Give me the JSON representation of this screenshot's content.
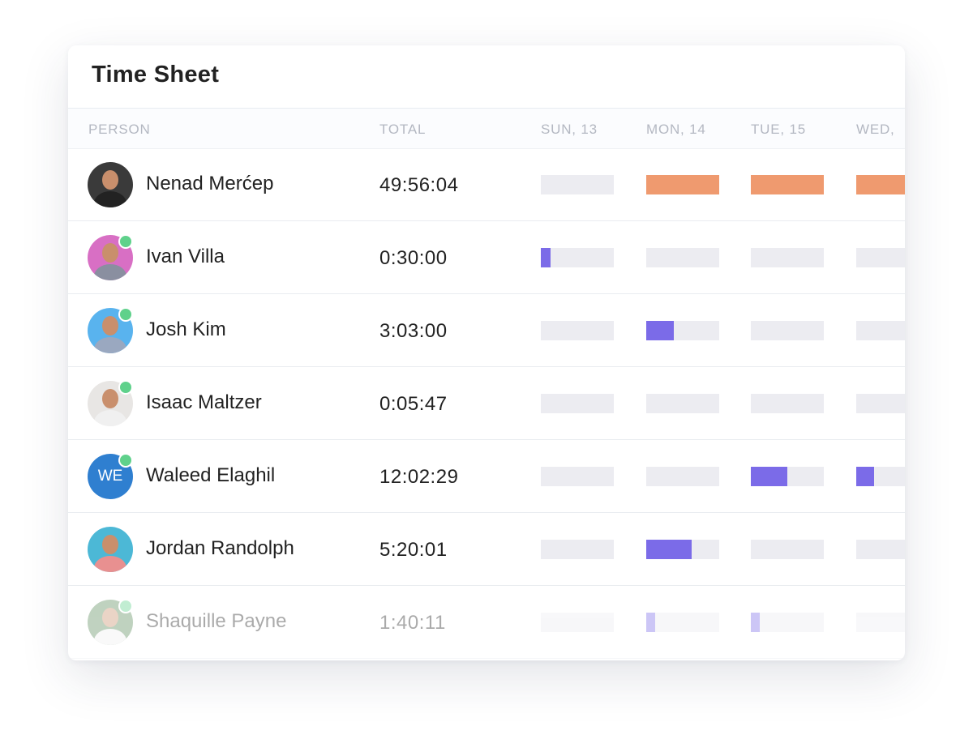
{
  "title": "Time Sheet",
  "columns": [
    "PERSON",
    "TOTAL",
    "SUN, 13",
    "MON, 14",
    "TUE, 15",
    "WED,"
  ],
  "rows": [
    {
      "name": "Nenad Merćep",
      "total": "49:56:04",
      "online": false,
      "bar_color": "#ef9a6f",
      "bars": [
        0,
        1,
        1,
        1
      ]
    },
    {
      "name": "Ivan Villa",
      "total": "0:30:00",
      "online": true,
      "bar_color": "#7b6be8",
      "bars": [
        0.13,
        0,
        0,
        0
      ]
    },
    {
      "name": "Josh Kim",
      "total": "3:03:00",
      "online": true,
      "bar_color": "#7b6be8",
      "bars": [
        0,
        0.38,
        0,
        0
      ]
    },
    {
      "name": "Isaac Maltzer",
      "total": "0:05:47",
      "online": true,
      "bar_color": "#7b6be8",
      "bars": [
        0,
        0,
        0,
        0
      ]
    },
    {
      "name": "Waleed Elaghil",
      "initials": "WE",
      "total": "12:02:29",
      "online": true,
      "bar_color": "#7b6be8",
      "bars": [
        0,
        0,
        0.5,
        0.24
      ]
    },
    {
      "name": "Jordan Randolph",
      "total": "5:20:01",
      "online": false,
      "bar_color": "#7b6be8",
      "bars": [
        0,
        0.62,
        0,
        0
      ]
    },
    {
      "name": "Shaquille Payne",
      "total": "1:40:11",
      "online": true,
      "bar_color": "#7b6be8",
      "bars": [
        0,
        0.12,
        0.12,
        0
      ]
    }
  ]
}
